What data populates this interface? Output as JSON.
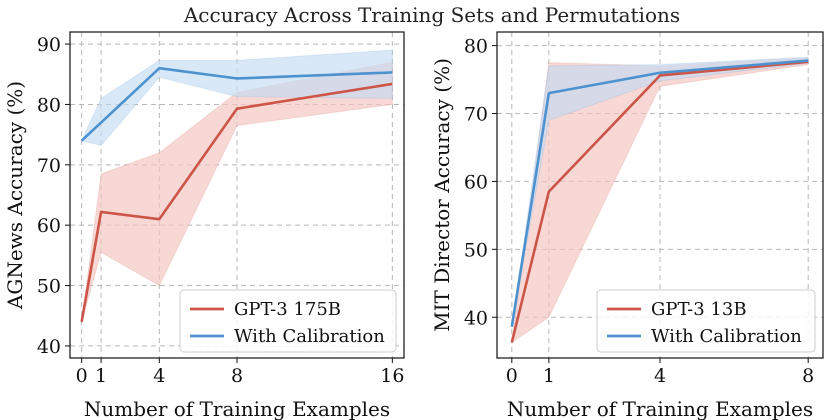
{
  "title": "Accuracy Across Training Sets and Permutations",
  "colors": {
    "gpt3": "#cc5548",
    "calibration": "#4d92cf",
    "gpt3_band": "#f2c3bf",
    "calibration_band": "#c4dcf2",
    "grid": "#b8b8b8"
  },
  "chart_data": [
    {
      "type": "line",
      "xlabel": "Number of Training Examples",
      "ylabel": "AGNews Accuracy (%)",
      "xlim": [
        -0.6,
        16.6
      ],
      "ylim": [
        38,
        92
      ],
      "x": [
        0,
        1,
        4,
        8,
        16
      ],
      "xticks": [
        0,
        1,
        4,
        8,
        16
      ],
      "yticks": [
        40,
        50,
        60,
        70,
        80,
        90
      ],
      "grid": true,
      "legend_position": "lower-right",
      "series": [
        {
          "name": "GPT-3 175B",
          "color_key": "gpt3",
          "values": [
            44,
            62.2,
            61,
            79.3,
            83.4
          ],
          "band_low": [
            44,
            55.5,
            50,
            76.5,
            80
          ],
          "band_high": [
            44,
            68.5,
            72,
            82,
            87
          ]
        },
        {
          "name": "With Calibration",
          "color_key": "calibration",
          "values": [
            74,
            77,
            86,
            84.3,
            85.3
          ],
          "band_low": [
            74,
            73.2,
            84.5,
            81.3,
            81
          ],
          "band_high": [
            74,
            81,
            87.3,
            87.3,
            89
          ]
        }
      ]
    },
    {
      "type": "line",
      "xlabel": "Number of Training Examples",
      "ylabel": "MIT Director Accuracy (%)",
      "xlim": [
        -0.4,
        8.4
      ],
      "ylim": [
        34,
        82
      ],
      "x": [
        0,
        1,
        4,
        8
      ],
      "xticks": [
        0,
        1,
        4,
        8
      ],
      "yticks": [
        40,
        50,
        60,
        70,
        80
      ],
      "grid": true,
      "legend_position": "lower-right",
      "series": [
        {
          "name": "GPT-3 13B",
          "color_key": "gpt3",
          "values": [
            36.3,
            58.5,
            75.6,
            77.6
          ],
          "band_low": [
            36.3,
            40,
            74,
            77.2
          ],
          "band_high": [
            36.3,
            77.5,
            77,
            78.2
          ]
        },
        {
          "name": "With Calibration",
          "color_key": "calibration",
          "values": [
            38.6,
            73,
            76,
            77.8
          ],
          "band_low": [
            38.6,
            69,
            74.8,
            77.4
          ],
          "band_high": [
            38.6,
            77,
            77.2,
            78.3
          ]
        }
      ]
    }
  ]
}
